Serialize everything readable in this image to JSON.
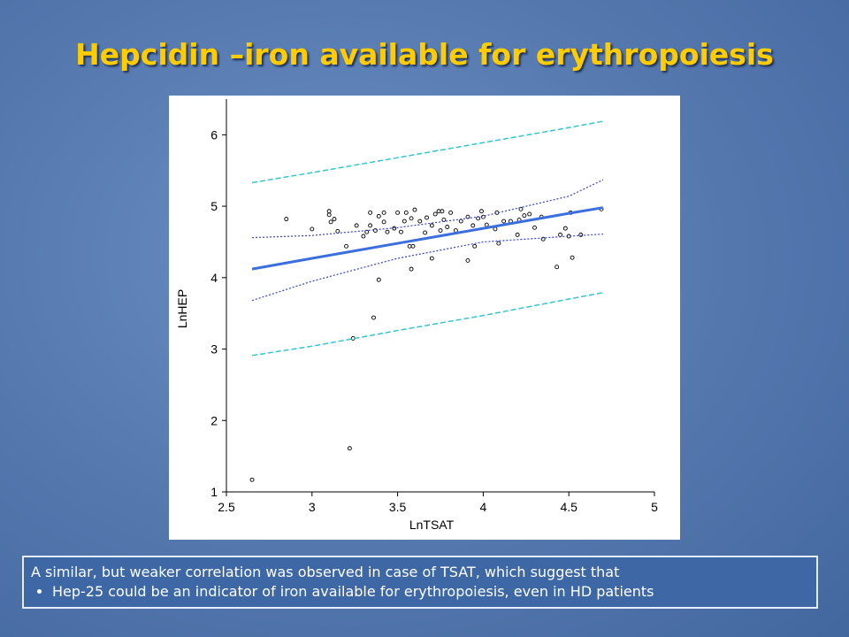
{
  "slide": {
    "title": "Hepcidin –iron available for erythropoiesis",
    "text": "A similar, but weaker correlation was observed in case of TSAT, which suggest  that",
    "bullets": [
      "Hep-25 could be an indicator of iron available for erythropoiesis, even in HD patients"
    ]
  },
  "chart_data": {
    "type": "scatter",
    "x_label": "LnTSAT",
    "y_label": "LnHEP",
    "xlim": [
      2.5,
      5
    ],
    "xticks": [
      2.5,
      3,
      3.5,
      4,
      4.5,
      5
    ],
    "ylim": [
      1,
      6.5
    ],
    "yticks": [
      1,
      2,
      3,
      4,
      5,
      6
    ],
    "grid": false,
    "series": [
      {
        "style": "markers",
        "color": "#000000",
        "x": [
          2.65,
          2.85,
          3.0,
          3.1,
          3.1,
          3.11,
          3.13,
          3.15,
          3.2,
          3.22,
          3.24,
          3.26,
          3.3,
          3.32,
          3.34,
          3.34,
          3.36,
          3.37,
          3.39,
          3.39,
          3.42,
          3.42,
          3.44,
          3.48,
          3.5,
          3.52,
          3.54,
          3.55,
          3.57,
          3.58,
          3.58,
          3.59,
          3.6,
          3.63,
          3.66,
          3.67,
          3.7,
          3.7,
          3.72,
          3.74,
          3.76,
          3.75,
          3.77,
          3.79,
          3.81,
          3.84,
          3.87,
          3.91,
          3.91,
          3.94,
          3.95,
          3.97,
          3.99,
          4.0,
          4.02,
          4.07,
          4.08,
          4.09,
          4.12,
          4.16,
          4.2,
          4.21,
          4.22,
          4.24,
          4.27,
          4.3,
          4.34,
          4.35,
          4.43,
          4.45,
          4.48,
          4.5,
          4.51,
          4.52,
          4.57,
          4.69
        ],
        "values": [
          1.17,
          4.82,
          4.68,
          4.88,
          4.93,
          4.78,
          4.82,
          4.65,
          4.44,
          1.61,
          3.15,
          4.73,
          4.58,
          4.64,
          4.91,
          4.73,
          3.44,
          4.66,
          3.97,
          4.86,
          4.78,
          4.91,
          4.64,
          4.69,
          4.91,
          4.64,
          4.79,
          4.91,
          4.44,
          4.12,
          4.83,
          4.44,
          4.95,
          4.79,
          4.63,
          4.84,
          4.27,
          4.73,
          4.89,
          4.93,
          4.93,
          4.66,
          4.81,
          4.71,
          4.91,
          4.66,
          4.79,
          4.24,
          4.85,
          4.73,
          4.44,
          4.83,
          4.93,
          4.85,
          4.74,
          4.68,
          4.91,
          4.48,
          4.79,
          4.79,
          4.6,
          4.81,
          4.96,
          4.87,
          4.89,
          4.7,
          4.85,
          4.54,
          4.15,
          4.6,
          4.69,
          4.58,
          4.91,
          4.28,
          4.6,
          4.96
        ]
      },
      {
        "style": "solid",
        "color": "#3b6fe0",
        "x": [
          2.65,
          3.0,
          3.5,
          4.0,
          4.5,
          4.7
        ],
        "values": [
          4.12,
          4.27,
          4.48,
          4.69,
          4.9,
          4.98
        ]
      },
      {
        "style": "dotted",
        "color": "#3344cc",
        "x": [
          2.65,
          3.0,
          3.5,
          4.0,
          4.5,
          4.7
        ],
        "values": [
          4.56,
          4.59,
          4.7,
          4.86,
          5.14,
          5.37
        ]
      },
      {
        "style": "dotted",
        "color": "#3344cc",
        "x": [
          2.65,
          3.0,
          3.5,
          4.0,
          4.5,
          4.7
        ],
        "values": [
          3.68,
          3.95,
          4.27,
          4.5,
          4.58,
          4.61
        ]
      },
      {
        "style": "dashed",
        "color": "#33c6cc",
        "x": [
          2.65,
          3.0,
          3.5,
          4.0,
          4.5,
          4.7
        ],
        "values": [
          5.33,
          5.47,
          5.68,
          5.89,
          6.1,
          6.19
        ]
      },
      {
        "style": "dashed",
        "color": "#33c6cc",
        "x": [
          2.65,
          3.0,
          3.5,
          4.0,
          4.5,
          4.7
        ],
        "values": [
          2.91,
          3.04,
          3.26,
          3.47,
          3.7,
          3.79
        ]
      }
    ]
  }
}
